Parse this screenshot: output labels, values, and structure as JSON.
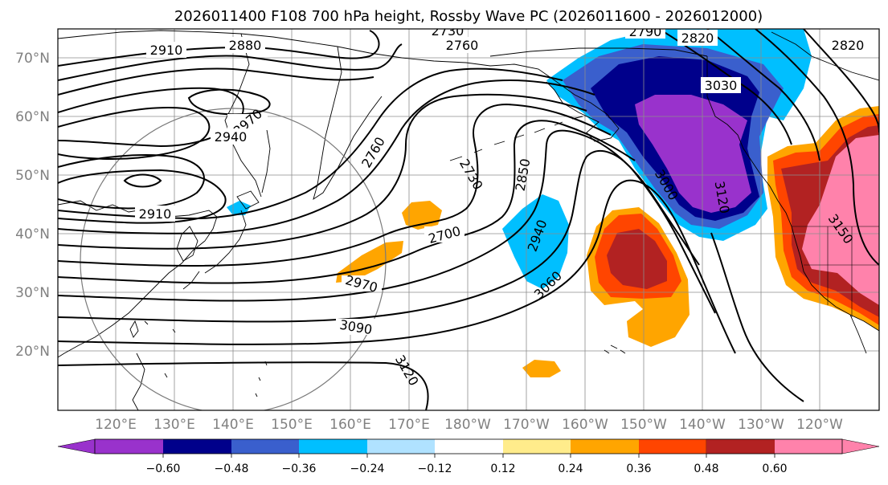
{
  "title": "2026011400 F108 700 hPa height, Rossby Wave PC (2026011600 - 2026012000)",
  "lat_labels": [
    "70°N",
    "60°N",
    "50°N",
    "40°N",
    "30°N",
    "20°N"
  ],
  "lon_labels": [
    "120°E",
    "130°E",
    "140°E",
    "150°E",
    "160°E",
    "170°E",
    "180°W",
    "170°W",
    "160°W",
    "150°W",
    "140°W",
    "130°W",
    "120°W"
  ],
  "colorbar": {
    "colors": [
      "#9932cc",
      "#00008b",
      "#3a5fcd",
      "#00bfff",
      "#b0e2ff",
      "#ffffff",
      "#ffec8b",
      "#ffa500",
      "#ff4500",
      "#b22222",
      "#ff82ab"
    ],
    "ticks": [
      "−0.60",
      "−0.48",
      "−0.36",
      "−0.24",
      "−0.12",
      "0.12",
      "0.24",
      "0.36",
      "0.48",
      "0.60"
    ]
  },
  "contour_labels": [
    "2910",
    "2880",
    "2730",
    "2760",
    "2790",
    "2820",
    "2820",
    "2970",
    "2940",
    "2910",
    "2760",
    "2730",
    "2850",
    "2700",
    "2940",
    "3030",
    "3000",
    "3120",
    "3060",
    "2970",
    "3090",
    "3120",
    "3150"
  ]
}
